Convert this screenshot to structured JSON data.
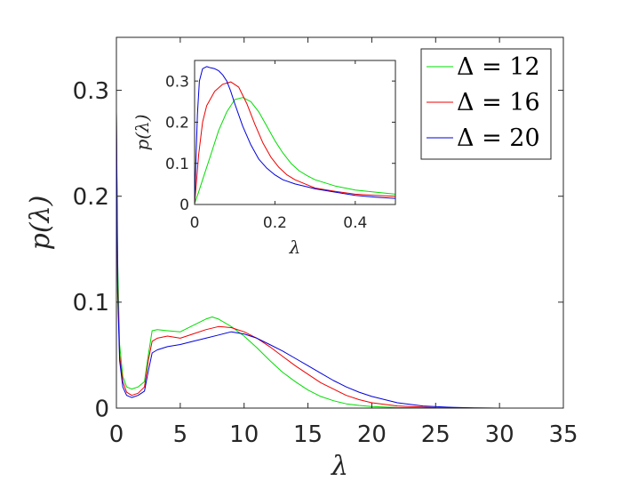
{
  "chart_data": [
    {
      "type": "line",
      "xlabel": "λ",
      "ylabel": "p(λ)",
      "xlim": [
        0,
        35
      ],
      "ylim": [
        0,
        0.35
      ],
      "xticks": [
        0,
        5,
        10,
        15,
        20,
        25,
        30,
        35
      ],
      "yticks": [
        0,
        0.1,
        0.2,
        0.3
      ],
      "xtick_labels": [
        "0",
        "5",
        "10",
        "15",
        "20",
        "25",
        "30",
        "35"
      ],
      "ytick_labels": [
        "0",
        "0.1",
        "0.2",
        "0.3"
      ],
      "grid": false,
      "legend_position": "top-right",
      "series": [
        {
          "name": "Δ = 12",
          "color": "#00dd00",
          "x": [
            0,
            0.1,
            0.25,
            0.5,
            0.8,
            1.2,
            1.7,
            2.2,
            2.5,
            2.8,
            3.2,
            4,
            5,
            6,
            7,
            7.5,
            8,
            9,
            10,
            11,
            12,
            13,
            14,
            15,
            16,
            17,
            18,
            19,
            20,
            22,
            25,
            30,
            35
          ],
          "y": [
            0.28,
            0.14,
            0.06,
            0.03,
            0.02,
            0.018,
            0.02,
            0.025,
            0.05,
            0.073,
            0.074,
            0.073,
            0.072,
            0.078,
            0.084,
            0.086,
            0.084,
            0.077,
            0.068,
            0.057,
            0.045,
            0.034,
            0.025,
            0.017,
            0.011,
            0.007,
            0.004,
            0.0025,
            0.0015,
            0.0005,
            0.0001,
            0,
            0
          ]
        },
        {
          "name": "Δ = 16",
          "color": "#ee0000",
          "x": [
            0,
            0.1,
            0.25,
            0.5,
            0.8,
            1.2,
            1.7,
            2.2,
            2.5,
            2.8,
            3.2,
            4,
            5,
            6,
            7,
            8,
            9,
            10,
            11,
            12,
            13,
            14,
            15,
            16,
            17,
            18,
            19,
            20,
            22,
            25,
            28,
            30,
            35
          ],
          "y": [
            0.28,
            0.12,
            0.05,
            0.025,
            0.015,
            0.012,
            0.014,
            0.02,
            0.045,
            0.063,
            0.066,
            0.068,
            0.066,
            0.07,
            0.074,
            0.077,
            0.076,
            0.072,
            0.066,
            0.058,
            0.049,
            0.04,
            0.032,
            0.024,
            0.018,
            0.012,
            0.008,
            0.005,
            0.002,
            0.0004,
            0.0001,
            0,
            0
          ]
        },
        {
          "name": "Δ = 20",
          "color": "#0000dd",
          "x": [
            0,
            0.1,
            0.25,
            0.5,
            0.8,
            1.2,
            1.7,
            2.2,
            2.5,
            2.8,
            3.2,
            4,
            5,
            6,
            7,
            8,
            9,
            10,
            11,
            12,
            13,
            14,
            15,
            16,
            17,
            18,
            19,
            20,
            22,
            24,
            26,
            28,
            30,
            35
          ],
          "y": [
            0.28,
            0.11,
            0.045,
            0.02,
            0.012,
            0.01,
            0.012,
            0.016,
            0.035,
            0.052,
            0.055,
            0.058,
            0.06,
            0.063,
            0.066,
            0.069,
            0.072,
            0.07,
            0.066,
            0.06,
            0.054,
            0.047,
            0.04,
            0.033,
            0.026,
            0.02,
            0.015,
            0.011,
            0.005,
            0.002,
            0.0008,
            0.0002,
            0,
            0
          ]
        }
      ]
    },
    {
      "type": "line",
      "xlabel": "λ",
      "ylabel": "p(λ)",
      "xlim": [
        0,
        0.5
      ],
      "ylim": [
        0,
        0.35
      ],
      "xticks": [
        0,
        0.2,
        0.4
      ],
      "yticks": [
        0,
        0.1,
        0.2,
        0.3
      ],
      "xtick_labels": [
        "0",
        "0.2",
        "0.4"
      ],
      "ytick_labels": [
        "0",
        "0.1",
        "0.2",
        "0.3"
      ],
      "grid": false,
      "series": [
        {
          "name": "Δ = 12",
          "color": "#00dd00",
          "x": [
            0,
            0.01,
            0.02,
            0.04,
            0.06,
            0.08,
            0.1,
            0.12,
            0.14,
            0.16,
            0.18,
            0.2,
            0.22,
            0.24,
            0.26,
            0.28,
            0.3,
            0.35,
            0.4,
            0.45,
            0.5
          ],
          "y": [
            0.002,
            0.03,
            0.06,
            0.12,
            0.18,
            0.225,
            0.255,
            0.26,
            0.25,
            0.225,
            0.19,
            0.155,
            0.125,
            0.1,
            0.082,
            0.07,
            0.06,
            0.045,
            0.035,
            0.03,
            0.025
          ]
        },
        {
          "name": "Δ = 16",
          "color": "#ee0000",
          "x": [
            0,
            0.005,
            0.01,
            0.02,
            0.03,
            0.05,
            0.07,
            0.09,
            0.11,
            0.13,
            0.15,
            0.17,
            0.19,
            0.21,
            0.23,
            0.25,
            0.28,
            0.3,
            0.35,
            0.4,
            0.45,
            0.5
          ],
          "y": [
            0.002,
            0.06,
            0.12,
            0.2,
            0.24,
            0.275,
            0.292,
            0.298,
            0.285,
            0.245,
            0.195,
            0.15,
            0.115,
            0.09,
            0.072,
            0.06,
            0.048,
            0.04,
            0.032,
            0.025,
            0.022,
            0.02
          ]
        },
        {
          "name": "Δ = 20",
          "color": "#0000dd",
          "x": [
            0,
            0.003,
            0.007,
            0.012,
            0.02,
            0.03,
            0.04,
            0.05,
            0.06,
            0.07,
            0.08,
            0.09,
            0.1,
            0.12,
            0.14,
            0.16,
            0.18,
            0.2,
            0.22,
            0.25,
            0.28,
            0.3,
            0.35,
            0.4,
            0.45,
            0.5
          ],
          "y": [
            0.002,
            0.1,
            0.22,
            0.3,
            0.33,
            0.335,
            0.332,
            0.33,
            0.325,
            0.315,
            0.3,
            0.275,
            0.245,
            0.19,
            0.145,
            0.11,
            0.088,
            0.072,
            0.06,
            0.05,
            0.043,
            0.038,
            0.03,
            0.022,
            0.018,
            0.015
          ]
        }
      ]
    }
  ]
}
